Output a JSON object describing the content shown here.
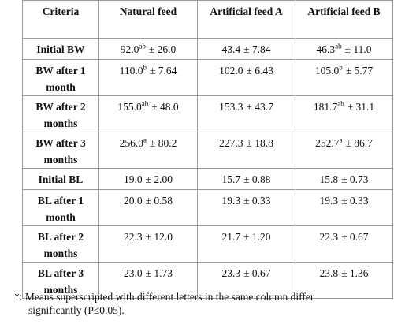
{
  "table": {
    "header": [
      "Criteria",
      "Natural feed",
      "Artificial feed A",
      "Artificial feed B"
    ],
    "rows": [
      {
        "label": "Initial BW",
        "cells": [
          {
            "v": "92.0",
            "sup": "ab",
            "sd": "± 26.0"
          },
          {
            "v": "43.4",
            "sd": "± 7.84"
          },
          {
            "v": "46.3",
            "sup": "ab",
            "sd": "± 11.0"
          }
        ]
      },
      {
        "label": "BW after 1 month",
        "cells": [
          {
            "v": "110.0",
            "sup": "b",
            "sd": "± 7.64"
          },
          {
            "v": "102.0",
            "sd": "± 6.43"
          },
          {
            "v": "105.0",
            "sup": "b",
            "sd": "± 5.77"
          }
        ]
      },
      {
        "label": "BW after 2 months",
        "cells": [
          {
            "v": "155.0",
            "sup": "ab",
            "sd": "± 48.0"
          },
          {
            "v": "153.3",
            "sd": "± 43.7"
          },
          {
            "v": "181.7",
            "sup": "ab",
            "sd": "± 31.1"
          }
        ]
      },
      {
        "label": "BW after 3 months",
        "cells": [
          {
            "v": "256.0",
            "sup": "a",
            "sd": "± 80.2"
          },
          {
            "v": "227.3",
            "sd": "± 18.8"
          },
          {
            "v": "252.7",
            "sup": "a",
            "sd": "± 86.7"
          }
        ]
      },
      {
        "label": "Initial BL",
        "cells": [
          {
            "v": "19.0",
            "sd": "± 2.00"
          },
          {
            "v": "15.7",
            "sd": "± 0.88"
          },
          {
            "v": "15.8",
            "sd": "± 0.73"
          }
        ]
      },
      {
        "label": "BL after 1 month",
        "cells": [
          {
            "v": "20.0",
            "sd": "± 0.58"
          },
          {
            "v": "19.3",
            "sd": "± 0.33"
          },
          {
            "v": "19.3",
            "sd": "± 0.33"
          }
        ]
      },
      {
        "label": "BL after 2 months",
        "cells": [
          {
            "v": "22.3",
            "sd": "± 12.0"
          },
          {
            "v": "21.7",
            "sd": "± 1.20"
          },
          {
            "v": "22.3",
            "sd": "± 0.67"
          }
        ]
      },
      {
        "label": "BL after 3 months",
        "cells": [
          {
            "v": "23.0",
            "sd": "± 1.73"
          },
          {
            "v": "23.3",
            "sd": "± 0.67"
          },
          {
            "v": "23.8",
            "sd": "± 1.36"
          }
        ]
      }
    ]
  },
  "footnote": "*: Means superscripted with different letters in the same column differ significantly (P≤0.05)."
}
